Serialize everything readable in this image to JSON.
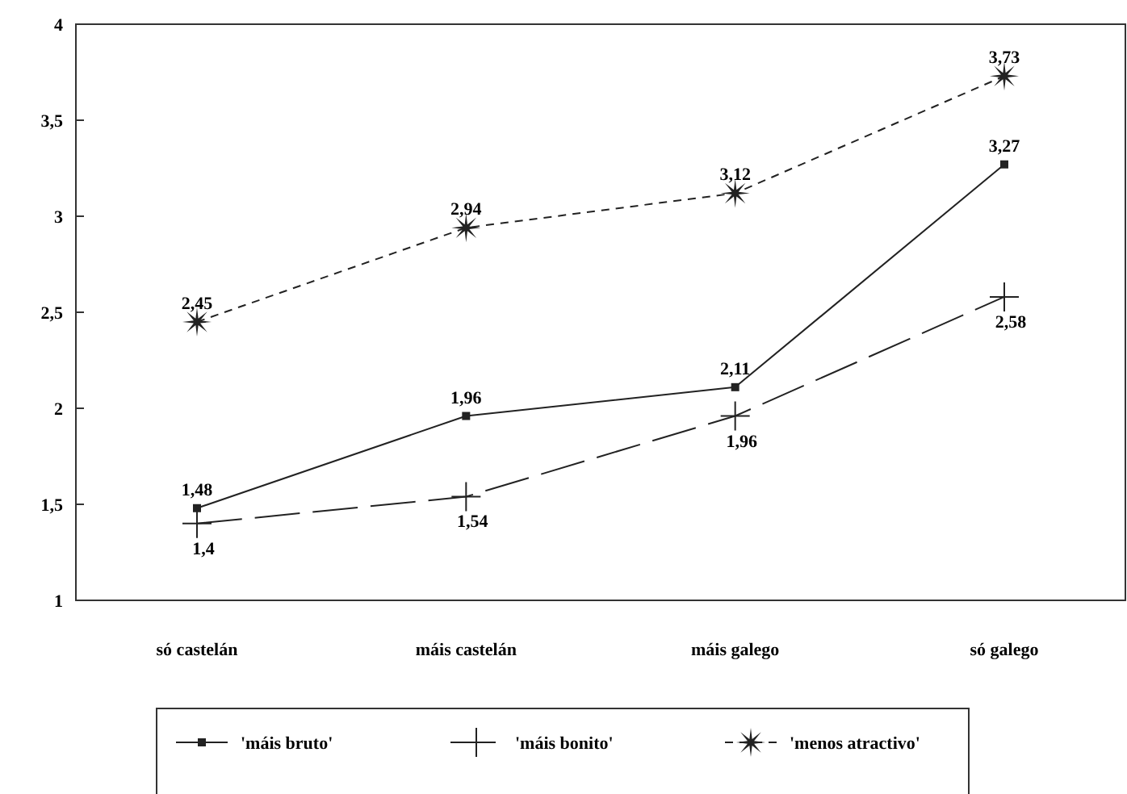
{
  "chart_data": {
    "type": "line",
    "categories": [
      "só castelán",
      "máis castelán",
      "máis galego",
      "só galego"
    ],
    "series": [
      {
        "name": "'máis bruto'",
        "color": "#222222",
        "values": [
          1.48,
          1.96,
          2.11,
          3.27
        ],
        "value_labels": [
          "1,48",
          "1,96",
          "2,11",
          "3,27"
        ],
        "marker": "square",
        "line_style": "solid"
      },
      {
        "name": "'máis bonito'",
        "color": "#222222",
        "values": [
          1.4,
          1.54,
          1.96,
          2.58
        ],
        "value_labels": [
          "1,4",
          "1,54",
          "1,96",
          "2,58"
        ],
        "marker": "cross",
        "line_style": "dashed"
      },
      {
        "name": "'menos atractivo'",
        "color": "#222222",
        "values": [
          2.45,
          2.94,
          3.12,
          3.73
        ],
        "value_labels": [
          "2,45",
          "2,94",
          "3,12",
          "3,73"
        ],
        "marker": "star",
        "line_style": "dotted"
      }
    ],
    "ylim": [
      1,
      4
    ],
    "yticks": [
      1,
      {
        "value": 1.5,
        "label": "1,5"
      },
      2,
      {
        "value": 2.5,
        "label": "2,5"
      },
      3,
      {
        "value": 3.5,
        "label": "3,5"
      },
      4
    ],
    "grid": false,
    "legend": "bottom"
  }
}
